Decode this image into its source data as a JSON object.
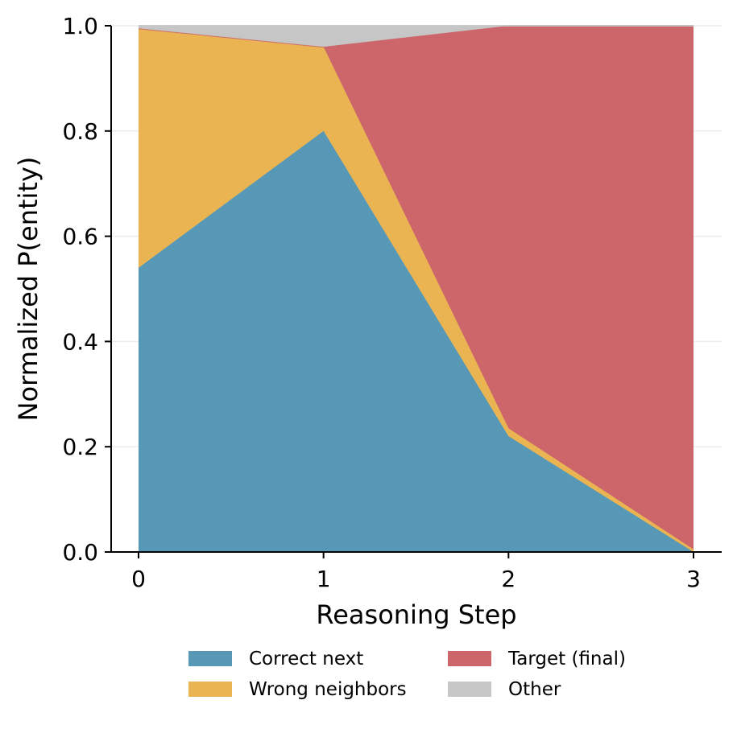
{
  "chart_data": {
    "type": "area",
    "stacked": true,
    "x": [
      0,
      1,
      2,
      3
    ],
    "xlabel": "Reasoning Step",
    "ylabel": "Normalized P(entity)",
    "xlim": [
      0,
      3
    ],
    "ylim": [
      0,
      1.0
    ],
    "xticks": [
      "0",
      "1",
      "2",
      "3"
    ],
    "yticks": [
      "0.0",
      "0.2",
      "0.4",
      "0.6",
      "0.8",
      "1.0"
    ],
    "grid": "horizontal, light",
    "legend_position": "bottom",
    "series": [
      {
        "name": "Correct next",
        "values": [
          0.54,
          0.8,
          0.22,
          0.0
        ],
        "color": "#5798b6"
      },
      {
        "name": "Wrong neighbors",
        "values": [
          0.455,
          0.16,
          0.015,
          0.005
        ],
        "color": "#ebb452"
      },
      {
        "name": "Target (final)",
        "values": [
          0.0,
          0.0,
          0.765,
          0.995
        ],
        "color": "#cc666b"
      },
      {
        "name": "Other",
        "values": [
          0.005,
          0.04,
          0.0,
          0.0
        ],
        "color": "#c6c6c6"
      }
    ]
  }
}
